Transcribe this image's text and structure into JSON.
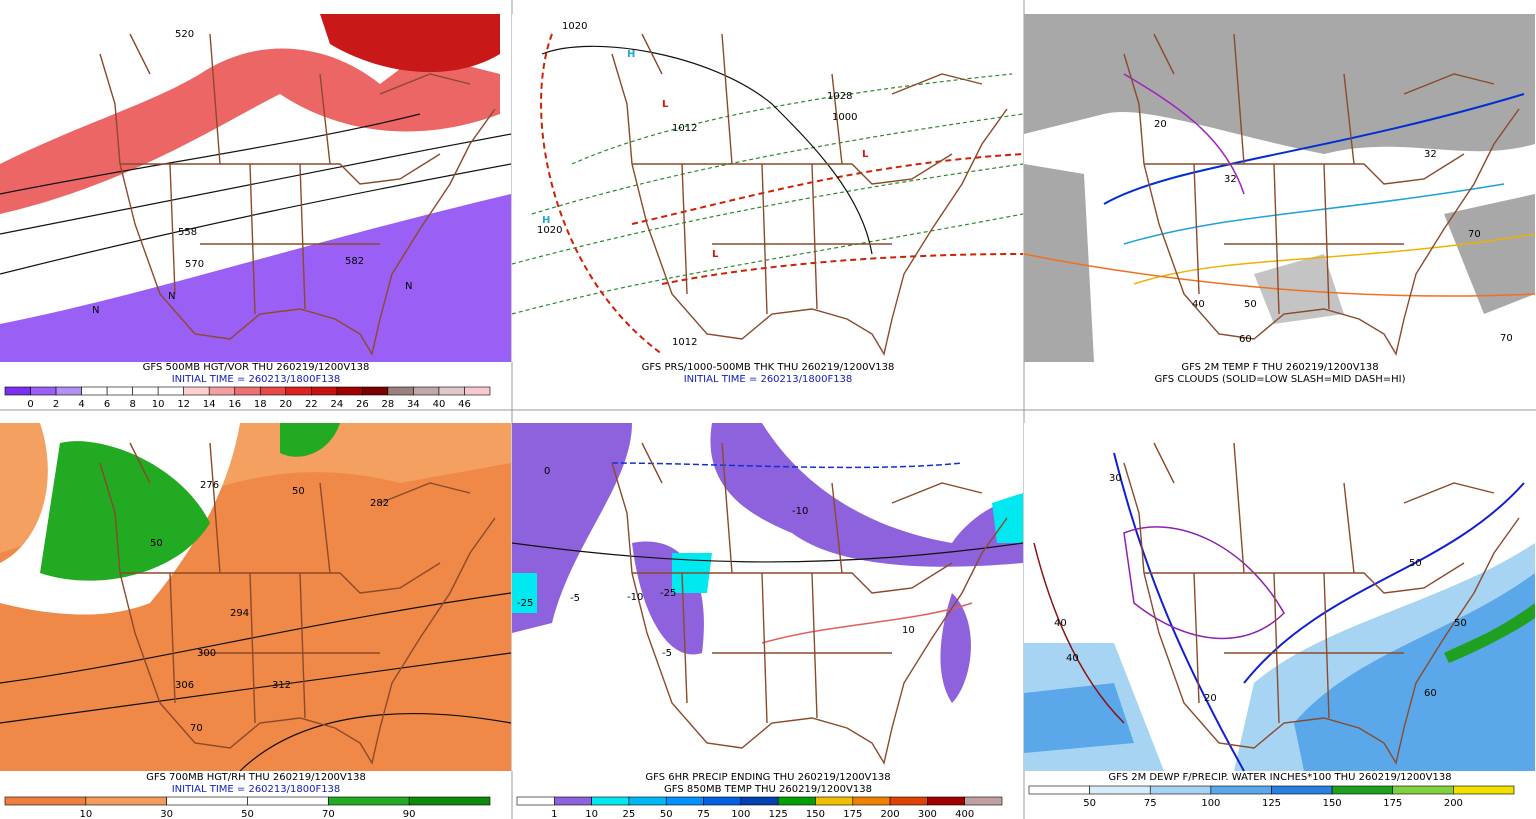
{
  "panels": [
    {
      "title": "GFS 500MB HGT/VOR THU 260219/1200V138",
      "subtitle": "INITIAL TIME = 260213/1800F138",
      "colorbar": {
        "labels": [
          "0",
          "2",
          "4",
          "6",
          "8",
          "10",
          "12",
          "14",
          "16",
          "18",
          "20",
          "22",
          "24",
          "26",
          "28",
          "34",
          "40",
          "46"
        ],
        "colors": [
          "#7b2ff0",
          "#9a5ff5",
          "#b48ff5",
          "#ffffff",
          "#ffffff",
          "#ffffff",
          "#ffffff",
          "#ffd0d0",
          "#f4a0a0",
          "#ee7070",
          "#e84848",
          "#dd2020",
          "#c81010",
          "#a00000",
          "#7a0000",
          "#9c8080",
          "#c0a8a8",
          "#e0c8c8",
          "#f8c8d0"
        ]
      },
      "map_labels": [
        "520",
        "558",
        "570",
        "582",
        "N",
        "N",
        "N"
      ]
    },
    {
      "title": "GFS PRS/1000-500MB THK THU 260219/1200V138",
      "subtitle": "INITIAL TIME = 260213/1800F138",
      "map_labels": [
        "1020",
        "1028",
        "1012",
        "1000",
        "H",
        "H",
        "L",
        "L",
        "L",
        "1020",
        "1012"
      ]
    },
    {
      "title": "GFS 2M TEMP F THU 260219/1200V138",
      "subtitle": "GFS CLOUDS (SOLID=LOW SLASH=MID DASH=HI)",
      "map_labels": [
        "32",
        "32",
        "20",
        "40",
        "60",
        "70",
        "70",
        "50"
      ]
    },
    {
      "title": "GFS 700MB HGT/RH THU 260219/1200V138",
      "subtitle": "INITIAL TIME = 260213/1800F138",
      "colorbar": {
        "labels": [
          "10",
          "30",
          "50",
          "70",
          "90"
        ],
        "colors": [
          "#ef7f3f",
          "#f49c5c",
          "#ffffff",
          "#ffffff",
          "#22aa22",
          "#0b8a0b"
        ]
      },
      "map_labels": [
        "276",
        "282",
        "294",
        "300",
        "306",
        "312",
        "50",
        "50",
        "70"
      ]
    },
    {
      "title": "GFS 6HR PRECIP ENDING THU 260219/1200V138",
      "subtitle": "GFS 850MB TEMP THU 260219/1200V138",
      "colorbar": {
        "labels": [
          "1",
          "10",
          "25",
          "50",
          "75",
          "100",
          "125",
          "150",
          "175",
          "200",
          "300",
          "400"
        ],
        "colors": [
          "#ffffff",
          "#8f62dd",
          "#00e8f0",
          "#00b8f8",
          "#0090ff",
          "#0060e0",
          "#0040b0",
          "#00a000",
          "#f0c000",
          "#f08000",
          "#e04000",
          "#a00000",
          "#c0a0a0"
        ]
      },
      "map_labels": [
        "-10",
        "-10",
        "-25",
        "-25",
        "10",
        "-5",
        "-5",
        "0"
      ]
    },
    {
      "title": "GFS 2M DEWP F/PRECIP. WATER INCHES*100 THU 260219/1200V138",
      "colorbar": {
        "labels": [
          "50",
          "75",
          "100",
          "125",
          "150",
          "175",
          "200"
        ],
        "colors": [
          "#ffffff",
          "#d8ecfa",
          "#a8d4f4",
          "#5aa8ea",
          "#2a80e0",
          "#20a020",
          "#80d040",
          "#f0e000"
        ]
      },
      "map_labels": [
        "40",
        "40",
        "50",
        "50",
        "60",
        "30",
        "20"
      ]
    }
  ]
}
